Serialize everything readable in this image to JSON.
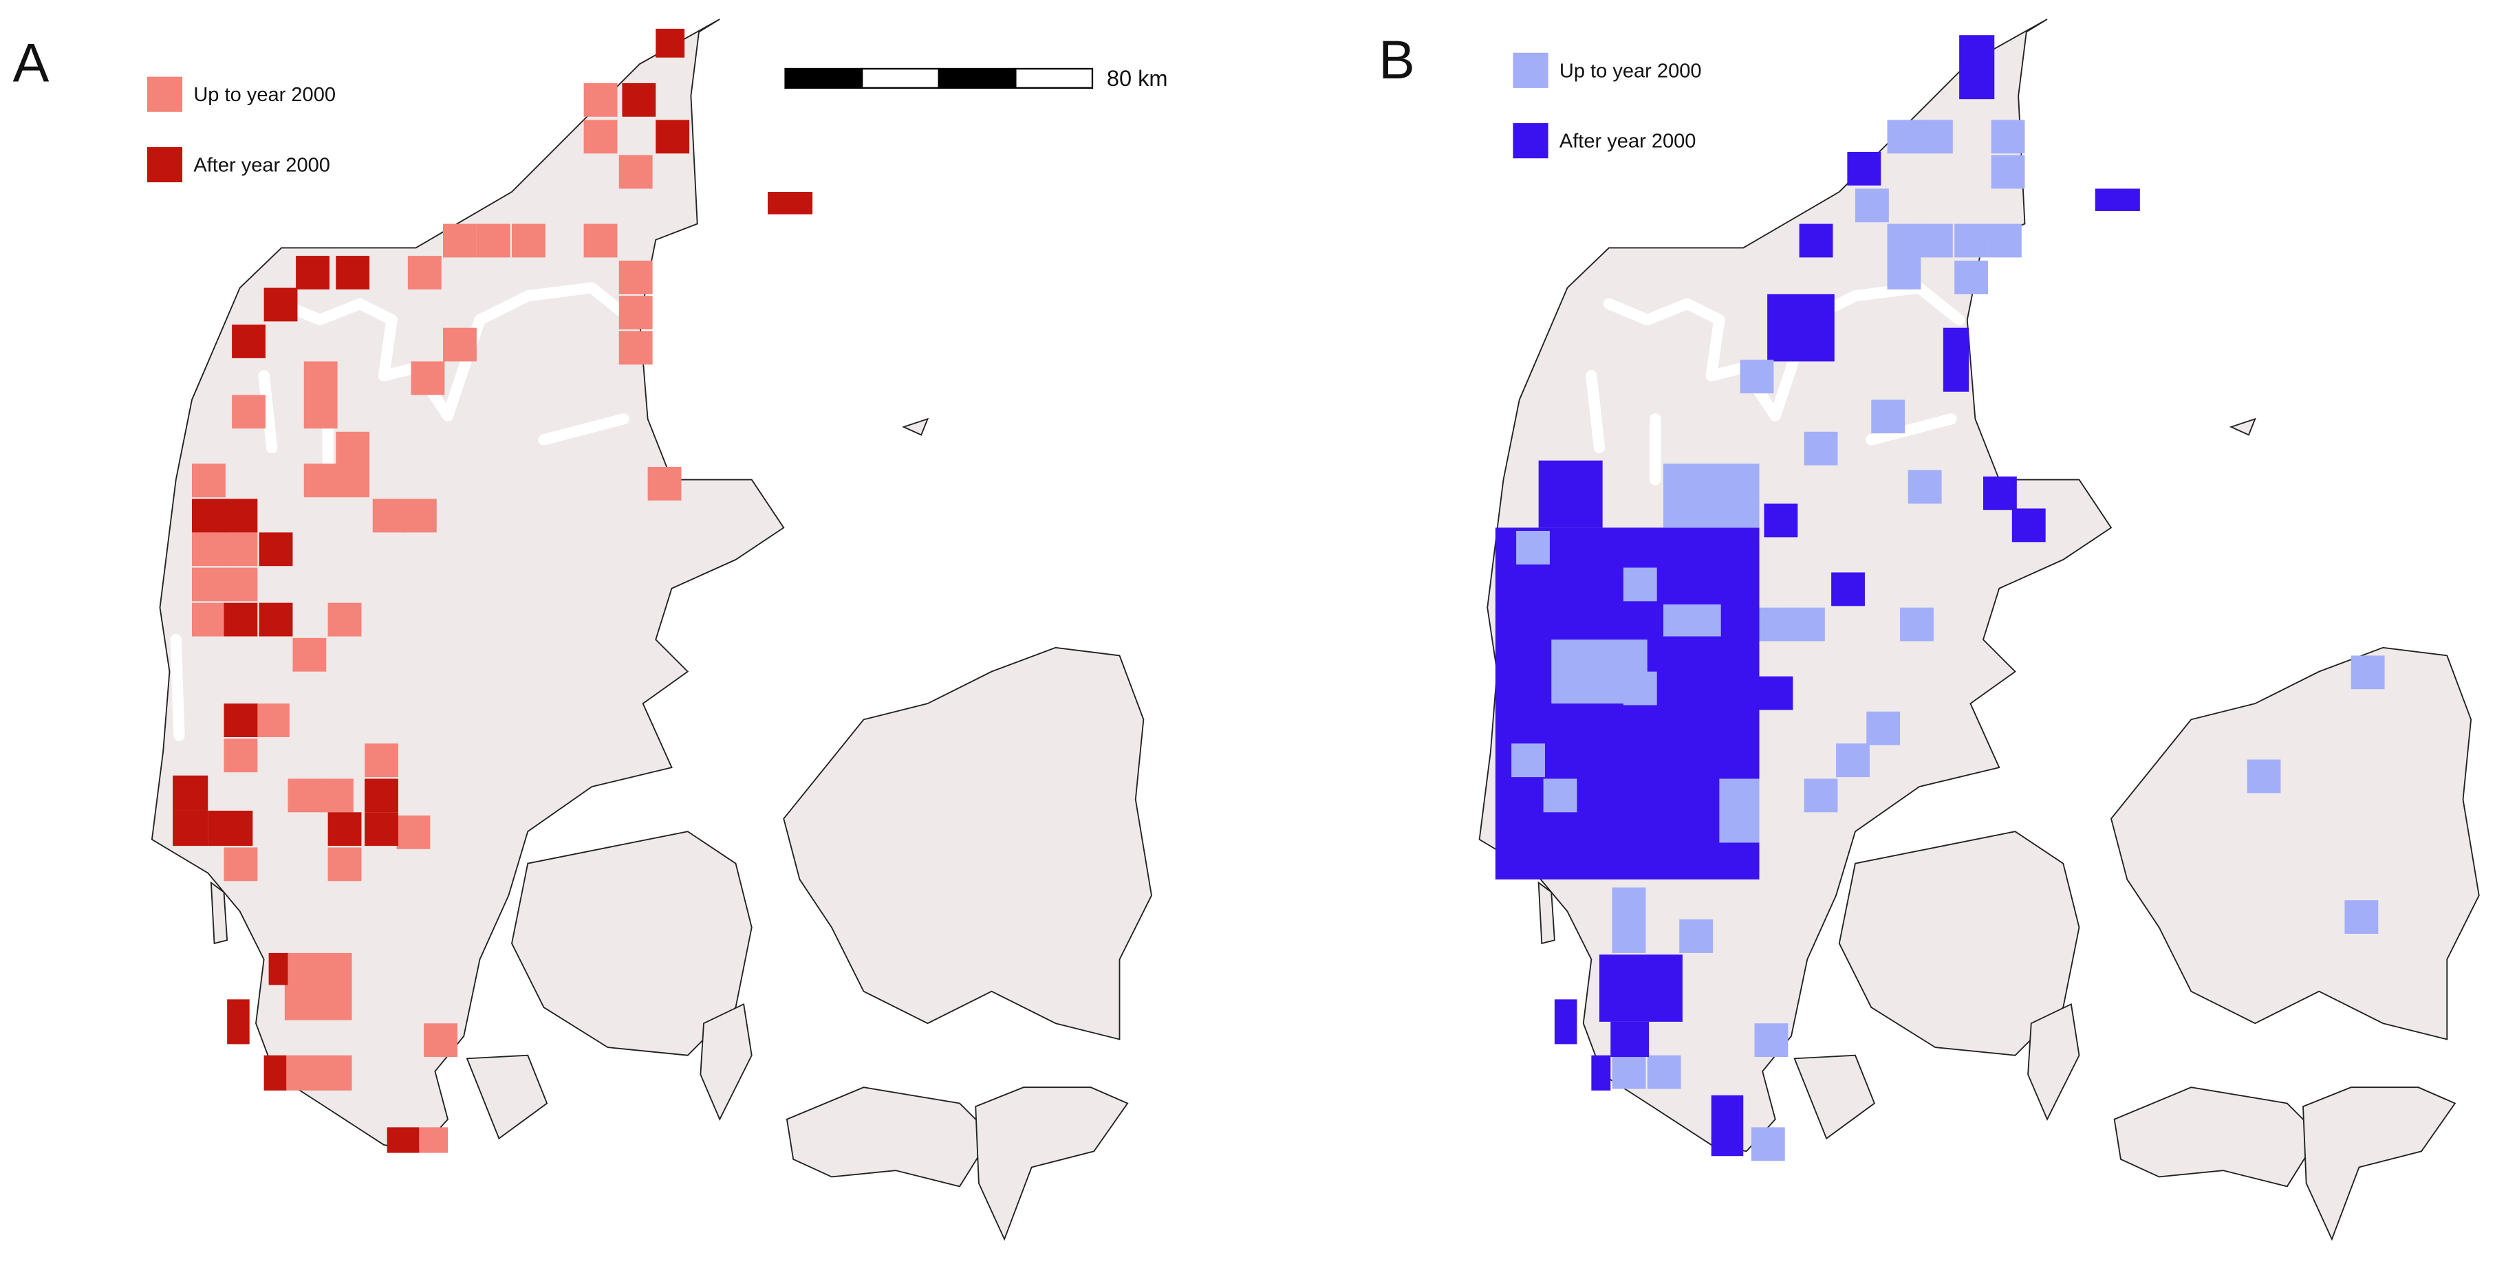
{
  "panels": [
    {
      "label": "A",
      "legend": [
        {
          "label": "Up to year 2000",
          "color": "#f4837a"
        },
        {
          "label": "After year 2000",
          "color": "#c0140c"
        }
      ]
    },
    {
      "label": "B",
      "legend": [
        {
          "label": "Up to year 2000",
          "color": "#a3aef8"
        },
        {
          "label": "After year 2000",
          "color": "#3a12f0"
        }
      ]
    }
  ],
  "scale_bar": {
    "label": "80 km"
  }
}
